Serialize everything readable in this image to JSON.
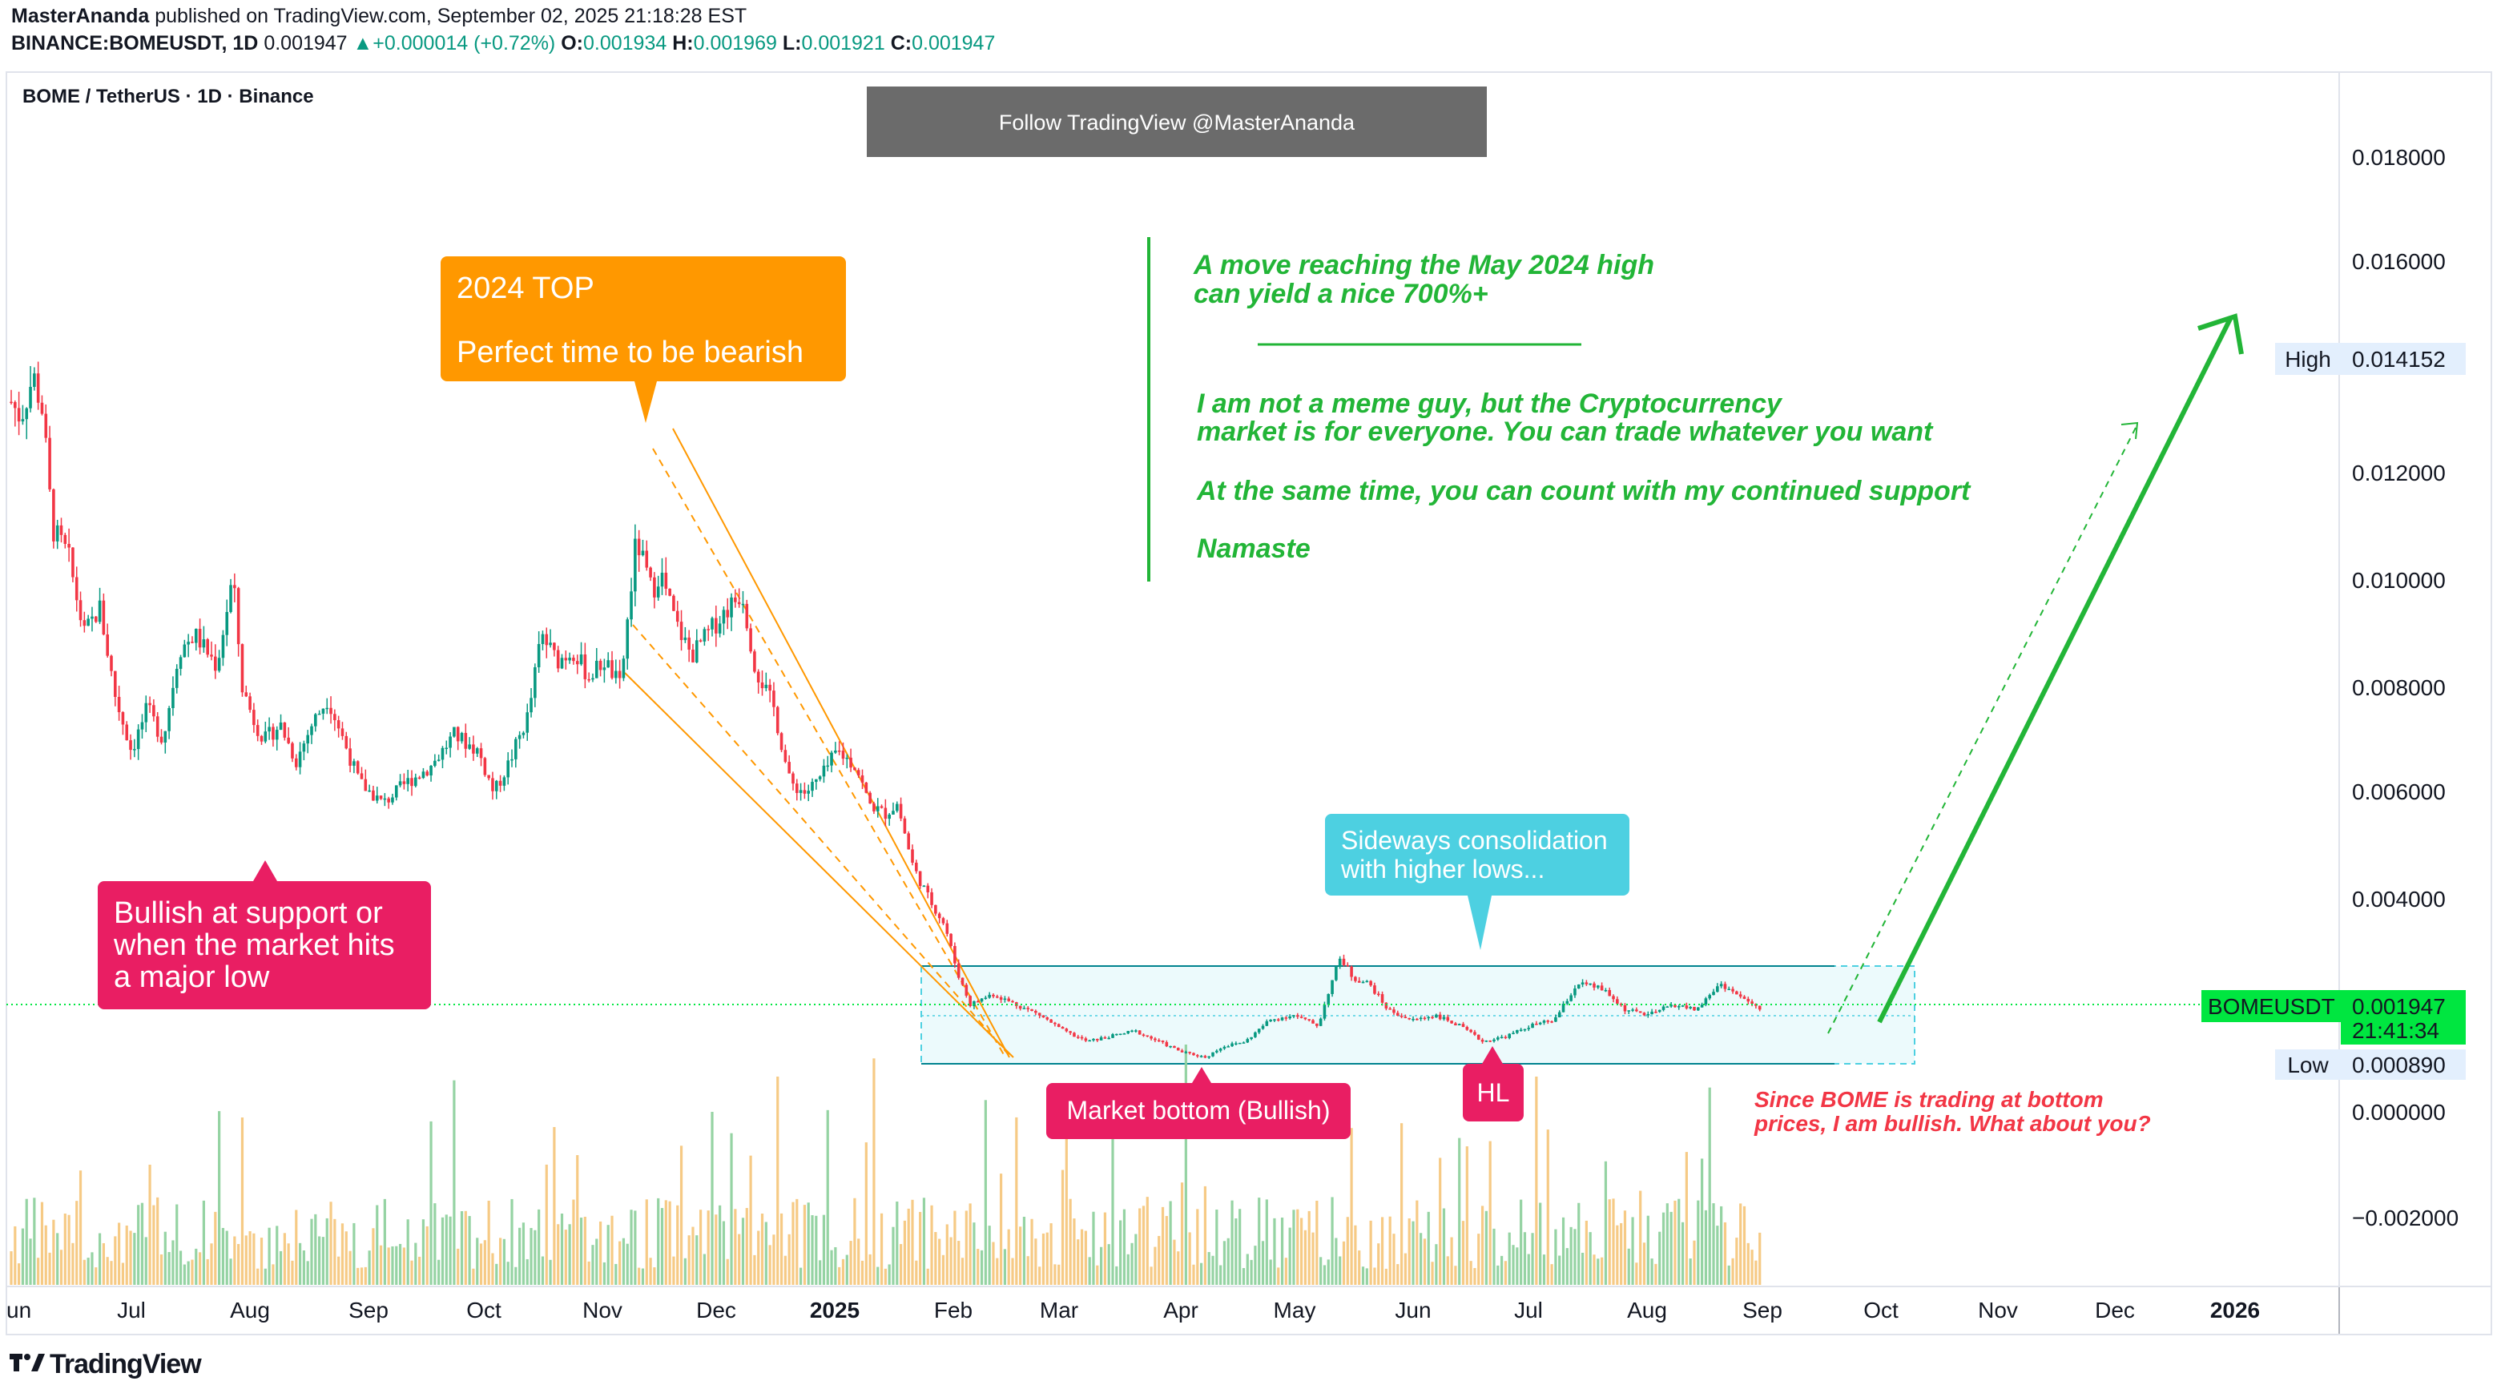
{
  "header": {
    "author": "MasterAnanda",
    "published": "published on TradingView.com, September 02, 2025 21:18:28 EST",
    "symbol_line": "BINANCE:BOMEUSDT, 1D",
    "last": "0.001947",
    "change": "+0.000014 (+0.72%)",
    "o_label": "O:",
    "o": "0.001934",
    "h_label": "H:",
    "h": "0.001969",
    "l_label": "L:",
    "l": "0.001921",
    "c_label": "C:",
    "c": "0.001947"
  },
  "pane_title": "BOME / TetherUS · 1D · Binance",
  "follow_banner": "Follow TradingView @MasterAnanda",
  "brand": "TradingView",
  "colors": {
    "up": "#089981",
    "down": "#f23645",
    "orange": "#ff9800",
    "green_text": "#22b537",
    "magenta": "#e91e63",
    "cyan": "#4dd0e1",
    "red_text": "#f23645",
    "price_tag": "#00e640"
  },
  "chart_data": {
    "type": "candlestick",
    "symbol": "BOMEUSDT",
    "timeframe": "1D",
    "x_ticks": [
      "Jun",
      "Jul",
      "Aug",
      "Sep",
      "Oct",
      "Nov",
      "Dec",
      "2025",
      "Feb",
      "Mar",
      "Apr",
      "May",
      "Jun",
      "Jul",
      "Aug",
      "Sep",
      "Oct",
      "Nov",
      "Dec",
      "2026"
    ],
    "y_ticks": [
      "0.018000",
      "0.016000",
      "0.012000",
      "0.010000",
      "0.008000",
      "0.006000",
      "0.004000",
      "0.000000",
      "−0.002000"
    ],
    "ylim": [
      -0.0032,
      0.0198
    ],
    "price_path": [
      [
        0.0,
        0.0134
      ],
      [
        0.006,
        0.0131
      ],
      [
        0.014,
        0.0139
      ],
      [
        0.02,
        0.0132
      ],
      [
        0.026,
        0.011
      ],
      [
        0.036,
        0.0105
      ],
      [
        0.046,
        0.009
      ],
      [
        0.056,
        0.0095
      ],
      [
        0.066,
        0.0078
      ],
      [
        0.076,
        0.0068
      ],
      [
        0.086,
        0.0076
      ],
      [
        0.096,
        0.007
      ],
      [
        0.106,
        0.0087
      ],
      [
        0.116,
        0.009
      ],
      [
        0.13,
        0.0084
      ],
      [
        0.14,
        0.0101
      ],
      [
        0.146,
        0.008
      ],
      [
        0.153,
        0.0074
      ],
      [
        0.16,
        0.007
      ],
      [
        0.17,
        0.0073
      ],
      [
        0.18,
        0.0066
      ],
      [
        0.19,
        0.0073
      ],
      [
        0.2,
        0.0078
      ],
      [
        0.21,
        0.007
      ],
      [
        0.22,
        0.0062
      ],
      [
        0.235,
        0.0058
      ],
      [
        0.25,
        0.0062
      ],
      [
        0.265,
        0.0065
      ],
      [
        0.28,
        0.0071
      ],
      [
        0.295,
        0.0068
      ],
      [
        0.305,
        0.006
      ],
      [
        0.315,
        0.0066
      ],
      [
        0.327,
        0.0075
      ],
      [
        0.335,
        0.009
      ],
      [
        0.345,
        0.0085
      ],
      [
        0.355,
        0.0087
      ],
      [
        0.365,
        0.0082
      ],
      [
        0.375,
        0.0085
      ],
      [
        0.385,
        0.008
      ],
      [
        0.395,
        0.0108
      ],
      [
        0.405,
        0.0098
      ],
      [
        0.41,
        0.0102
      ],
      [
        0.42,
        0.0092
      ],
      [
        0.43,
        0.0086
      ],
      [
        0.44,
        0.009
      ],
      [
        0.45,
        0.0094
      ],
      [
        0.462,
        0.0098
      ],
      [
        0.47,
        0.0084
      ],
      [
        0.482,
        0.0076
      ],
      [
        0.492,
        0.0062
      ],
      [
        0.502,
        0.006
      ],
      [
        0.512,
        0.0063
      ],
      [
        0.522,
        0.0068
      ],
      [
        0.534,
        0.0065
      ],
      [
        0.542,
        0.0058
      ],
      [
        0.552,
        0.0056
      ],
      [
        0.56,
        0.0058
      ],
      [
        0.57,
        0.0046
      ],
      [
        0.58,
        0.004
      ],
      [
        0.59,
        0.0035
      ],
      [
        0.598,
        0.0026
      ],
      [
        0.606,
        0.002
      ],
      [
        0.62,
        0.0022
      ],
      [
        0.635,
        0.002
      ],
      [
        0.65,
        0.0018
      ],
      [
        0.665,
        0.0015
      ],
      [
        0.68,
        0.0013
      ],
      [
        0.695,
        0.0014
      ],
      [
        0.71,
        0.0015
      ],
      [
        0.725,
        0.0013
      ],
      [
        0.74,
        0.0011
      ],
      [
        0.755,
        0.001
      ],
      [
        0.765,
        0.0012
      ],
      [
        0.78,
        0.0013
      ],
      [
        0.795,
        0.0017
      ],
      [
        0.81,
        0.0018
      ],
      [
        0.826,
        0.0016
      ],
      [
        0.832,
        0.0022
      ],
      [
        0.84,
        0.0029
      ],
      [
        0.848,
        0.0025
      ],
      [
        0.858,
        0.0024
      ],
      [
        0.87,
        0.0019
      ],
      [
        0.885,
        0.0017
      ],
      [
        0.9,
        0.0018
      ],
      [
        0.915,
        0.0016
      ],
      [
        0.93,
        0.0013
      ],
      [
        0.945,
        0.0014
      ],
      [
        0.96,
        0.0016
      ],
      [
        0.975,
        0.0017
      ],
      [
        0.99,
        0.0024
      ],
      [
        1.005,
        0.0023
      ],
      [
        1.02,
        0.0019
      ],
      [
        1.035,
        0.0018
      ],
      [
        1.05,
        0.002
      ],
      [
        1.065,
        0.0019
      ],
      [
        1.08,
        0.0024
      ],
      [
        1.095,
        0.0021
      ],
      [
        1.105,
        0.0019
      ]
    ],
    "price_label": {
      "symbol": "BOMEUSDT",
      "price": "0.001947",
      "countdown": "21:41:34",
      "value": 0.001947
    },
    "high_label": {
      "label": "High",
      "price": "0.014152",
      "value": 0.014152
    },
    "low_label": {
      "label": "Low",
      "price": "0.000890",
      "value": 0.00089
    },
    "annotations": {
      "top_title": "2024 TOP",
      "top_sub": "Perfect time to be bearish",
      "support_lines": [
        "Bullish at support or",
        "when the market hits",
        "a major low"
      ],
      "bottom": "Market bottom (Bullish)",
      "sideways_lines": [
        "Sideways consolidation",
        "with higher lows..."
      ],
      "hl": "HL",
      "green_lines": [
        "A move reaching the May 2024 high",
        "can yield a nice 700%+",
        "I am not a meme guy, but the Cryptocurrency",
        "market is for everyone. You can trade whatever you want",
        "At the same time, you can count with my continued support",
        "Namaste"
      ],
      "red_lines": [
        "Since BOME is trading at bottom",
        "prices, I am bullish. What about you?"
      ]
    }
  }
}
